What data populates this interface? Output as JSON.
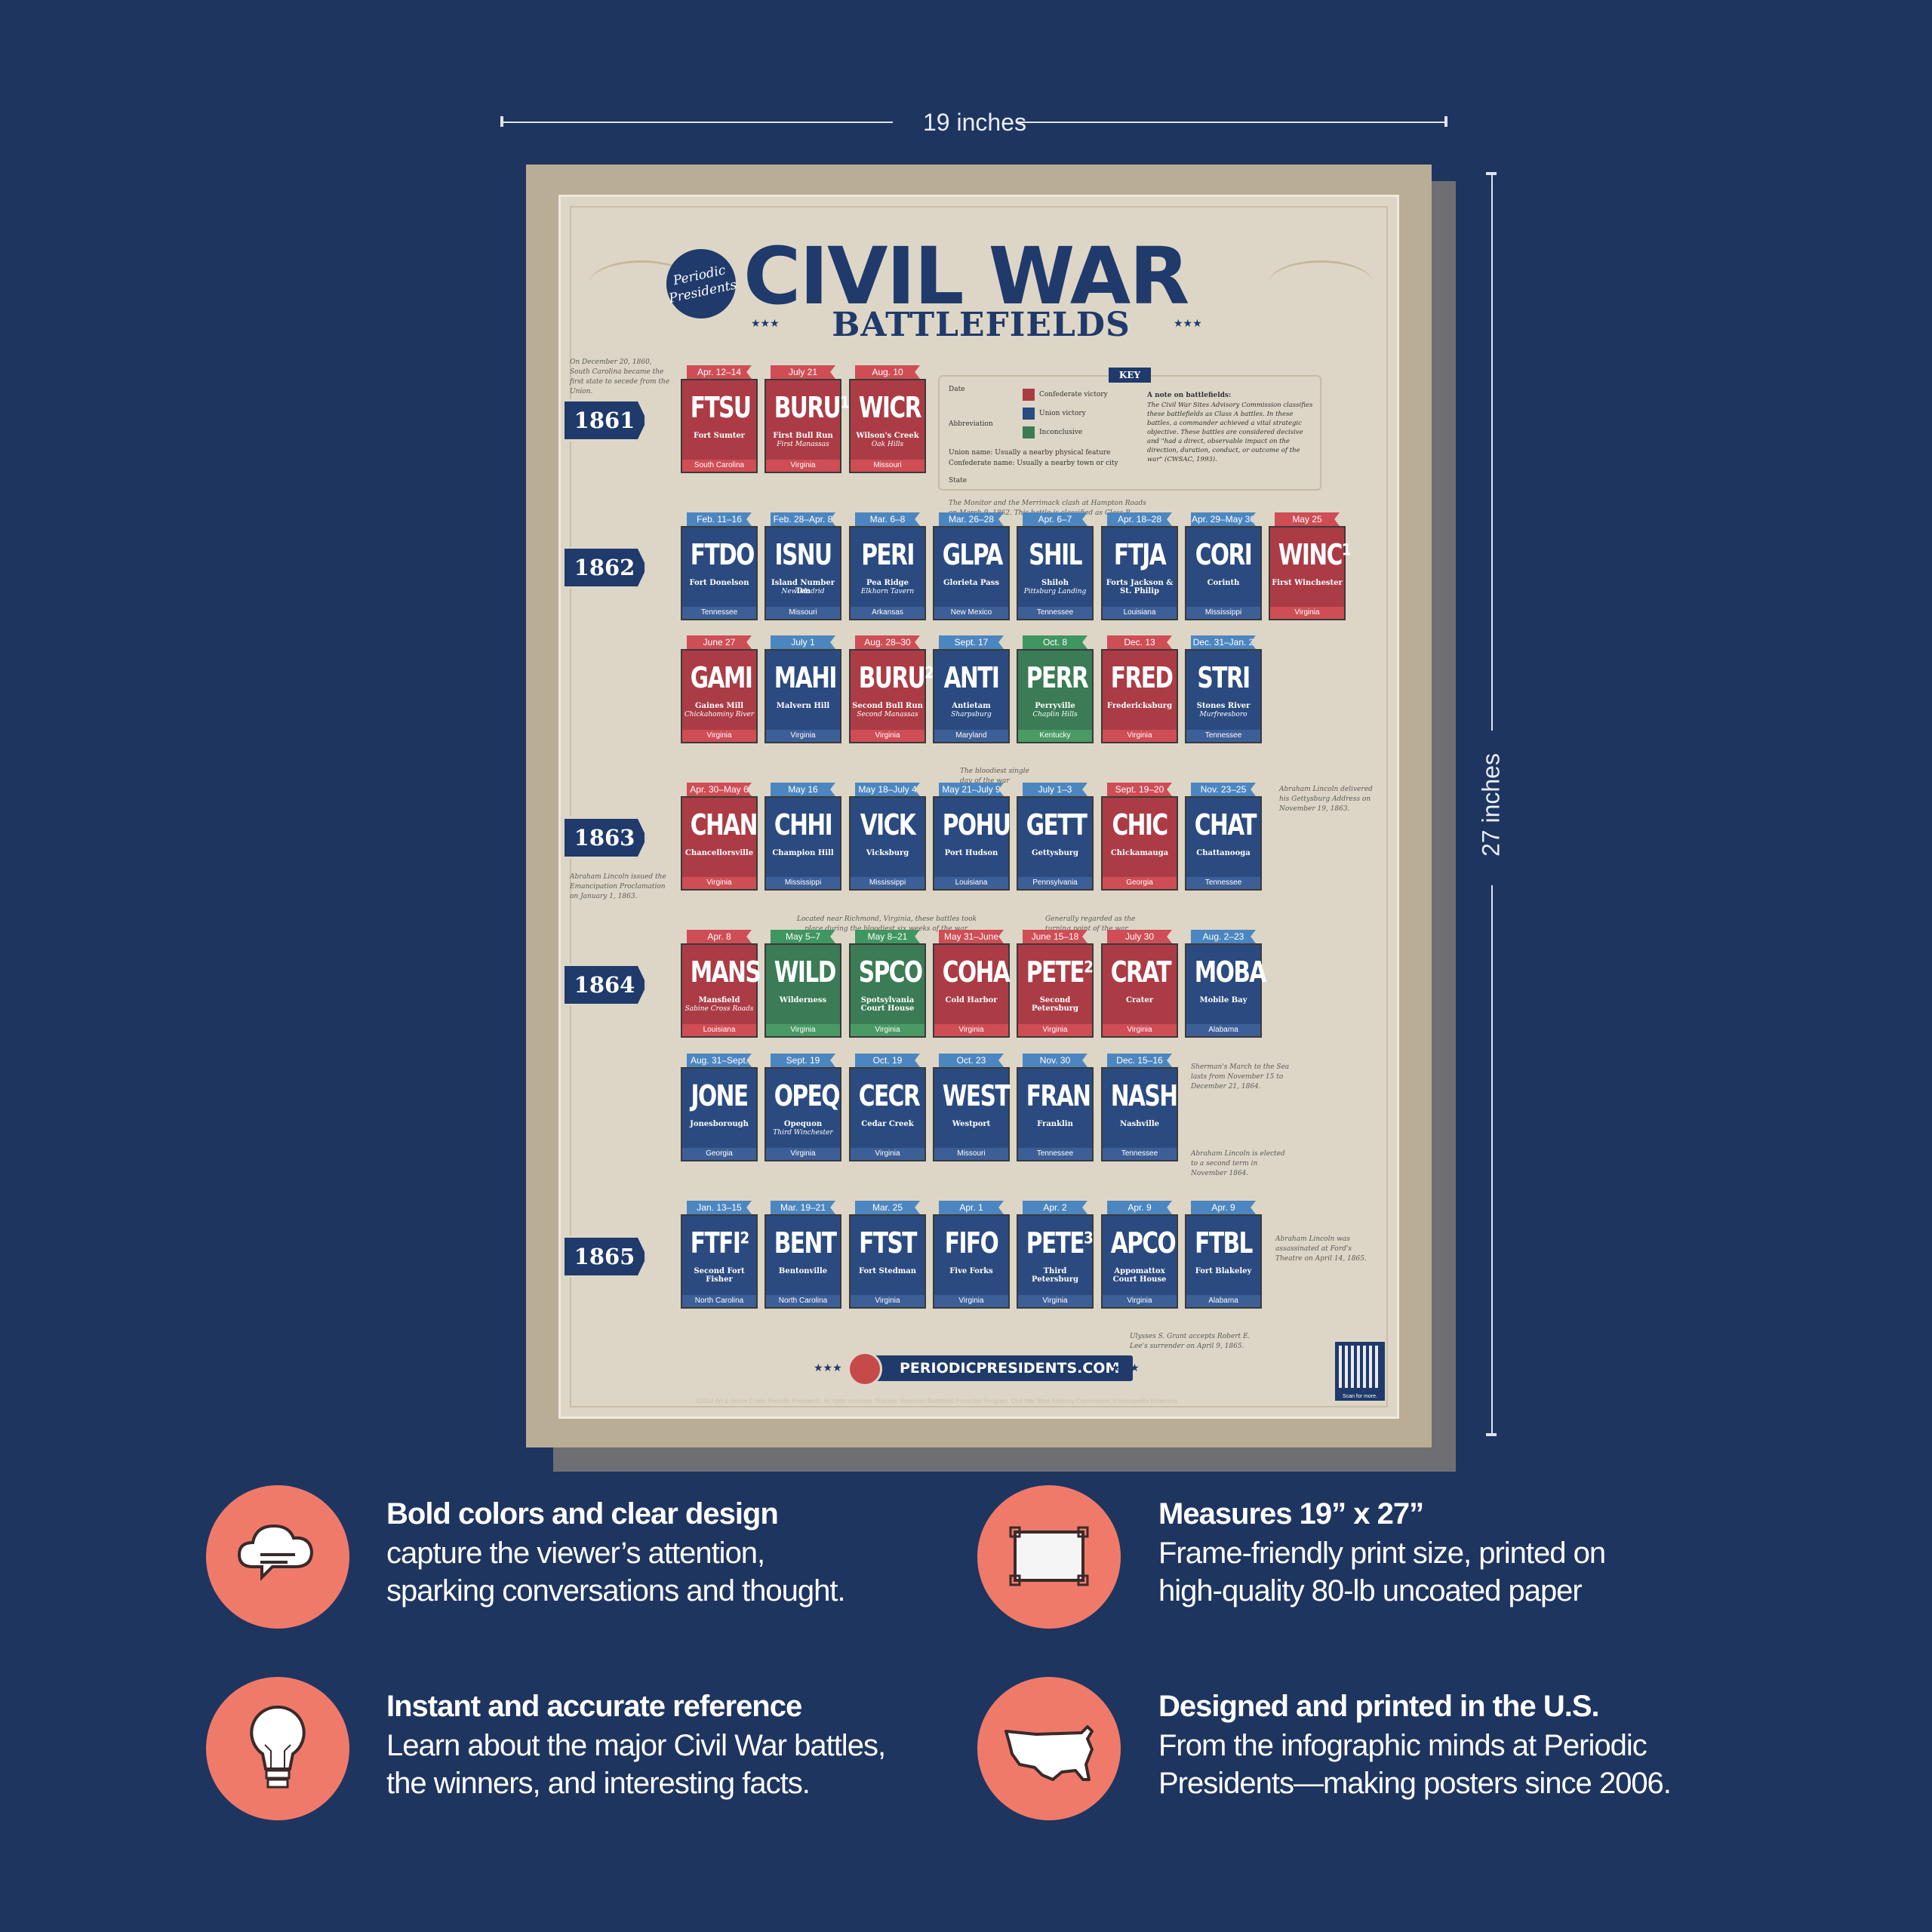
{
  "dimensions": {
    "width_label": "19 inches",
    "height_label": "27 inches"
  },
  "poster": {
    "logo_text": "Periodic Presidents",
    "title": "CIVIL WAR",
    "subtitle": "BATTLEFIELDS",
    "url": "PERIODICPRESIDENTS.COM",
    "qr_label": "Scan for more.",
    "copyright": "©2024 Art & Jessie Creek. Periodic Presidents. All rights reserved. Sources: American Battlefield Protection Program, Civil War Sites Advisory Commission, Encyclopedia Britannica",
    "key": {
      "title": "KEY",
      "date": "Date",
      "abbreviation": "Abbreviation",
      "union_name": "Union name: Usually a nearby physical feature",
      "confederate_name": "Confederate name: Usually a nearby town or city",
      "state": "State",
      "confederate_victory": "Confederate victory",
      "union_victory": "Union victory",
      "inconclusive": "Inconclusive",
      "note_title": "A note on battlefields:",
      "note_body": "The Civil War Sites Advisory Commission classifies these battlefields as Class A battles. In these battles, a commander achieved a vital strategic objective. These battles are considered decisive and \"had a direct, observable impact on the direction, duration, conduct, or outcome of the war\" (CWSAC, 1993).",
      "colors": {
        "C": "#ab3c45",
        "U": "#2b4b80",
        "I": "#3b7b55"
      }
    },
    "notes": {
      "n1860": "On December 20, 1860, South Carolina became the first state to secede from the Union.",
      "monitor": "The Monitor and the Merrimack clash at Hampton Roads on March 9, 1862. This battle is classified as Class B.",
      "antietam": "The bloodiest single day of the war",
      "gettysburg_address": "Abraham Lincoln delivered his Gettysburg Address on November 19, 1863.",
      "emancipation": "Abraham Lincoln issued the Emancipation Proclamation on January 1, 1863.",
      "richmond": "Located near Richmond, Virginia, these battles took place during the bloodiest six weeks of the war.",
      "turning": "Generally regarded as the turning point of the war",
      "sherman": "Sherman's March to the Sea lasts from November 15 to December 21, 1864.",
      "reelect": "Abraham Lincoln is elected to a second term in November 1864.",
      "assassinated": "Abraham Lincoln was assassinated at Ford's Theatre on April 14, 1865.",
      "surrender": "Ulysses S. Grant accepts Robert E. Lee's surrender on April 9, 1865."
    },
    "rows": [
      {
        "year": "1861",
        "cards": [
          {
            "r": "C",
            "date": "Apr. 12–14",
            "abbr": "FTSU",
            "name": "Fort Sumter",
            "alt": "",
            "state": "South Carolina"
          },
          {
            "r": "C",
            "date": "July 21",
            "abbr": "BURU¹",
            "name": "First Bull Run",
            "alt": "First Manassas",
            "state": "Virginia"
          },
          {
            "r": "C",
            "date": "Aug. 10",
            "abbr": "WICR",
            "name": "Wilson's Creek",
            "alt": "Oak Hills",
            "state": "Missouri"
          }
        ]
      },
      {
        "year": "1862",
        "cards": [
          {
            "r": "U",
            "date": "Feb. 11–16",
            "abbr": "FTDO",
            "name": "Fort Donelson",
            "alt": "",
            "state": "Tennessee"
          },
          {
            "r": "U",
            "date": "Feb. 28–Apr. 8",
            "abbr": "ISNU",
            "name": "Island Number Ten",
            "alt": "New Madrid",
            "state": "Missouri"
          },
          {
            "r": "U",
            "date": "Mar. 6–8",
            "abbr": "PERI",
            "name": "Pea Ridge",
            "alt": "Elkhorn Tavern",
            "state": "Arkansas"
          },
          {
            "r": "U",
            "date": "Mar. 26–28",
            "abbr": "GLPA",
            "name": "Glorieta Pass",
            "alt": "",
            "state": "New Mexico"
          },
          {
            "r": "U",
            "date": "Apr. 6–7",
            "abbr": "SHIL",
            "name": "Shiloh",
            "alt": "Pittsburg Landing",
            "state": "Tennessee"
          },
          {
            "r": "U",
            "date": "Apr. 18–28",
            "abbr": "FTJA",
            "name": "Forts Jackson & St. Philip",
            "alt": "",
            "state": "Louisiana"
          },
          {
            "r": "U",
            "date": "Apr. 29–May 30",
            "abbr": "CORI",
            "name": "Corinth",
            "alt": "",
            "state": "Mississippi"
          },
          {
            "r": "C",
            "date": "May 25",
            "abbr": "WINC¹",
            "name": "First Winchester",
            "alt": "",
            "state": "Virginia"
          }
        ]
      },
      {
        "year": "",
        "cards": [
          {
            "r": "C",
            "date": "June 27",
            "abbr": "GAMI",
            "name": "Gaines Mill",
            "alt": "Chickahominy River",
            "state": "Virginia"
          },
          {
            "r": "U",
            "date": "July 1",
            "abbr": "MAHI",
            "name": "Malvern Hill",
            "alt": "",
            "state": "Virginia"
          },
          {
            "r": "C",
            "date": "Aug. 28–30",
            "abbr": "BURU²",
            "name": "Second Bull Run",
            "alt": "Second Manassas",
            "state": "Virginia"
          },
          {
            "r": "U",
            "date": "Sept. 17",
            "abbr": "ANTI",
            "name": "Antietam",
            "alt": "Sharpsburg",
            "state": "Maryland"
          },
          {
            "r": "I",
            "date": "Oct. 8",
            "abbr": "PERR",
            "name": "Perryville",
            "alt": "Chaplin Hills",
            "state": "Kentucky"
          },
          {
            "r": "C",
            "date": "Dec. 13",
            "abbr": "FRED",
            "name": "Fredericksburg",
            "alt": "",
            "state": "Virginia"
          },
          {
            "r": "U",
            "date": "Dec. 31–Jan. 2",
            "abbr": "STRI",
            "name": "Stones River",
            "alt": "Murfreesboro",
            "state": "Tennessee"
          }
        ]
      },
      {
        "year": "1863",
        "cards": [
          {
            "r": "C",
            "date": "Apr. 30–May 6",
            "abbr": "CHAN",
            "name": "Chancellorsville",
            "alt": "",
            "state": "Virginia"
          },
          {
            "r": "U",
            "date": "May 16",
            "abbr": "CHHI",
            "name": "Champion Hill",
            "alt": "",
            "state": "Mississippi"
          },
          {
            "r": "U",
            "date": "May 18–July 4",
            "abbr": "VICK",
            "name": "Vicksburg",
            "alt": "",
            "state": "Mississippi"
          },
          {
            "r": "U",
            "date": "May 21–July 9",
            "abbr": "POHU",
            "name": "Port Hudson",
            "alt": "",
            "state": "Louisiana"
          },
          {
            "r": "U",
            "date": "July 1–3",
            "abbr": "GETT",
            "name": "Gettysburg",
            "alt": "",
            "state": "Pennsylvania"
          },
          {
            "r": "C",
            "date": "Sept. 19–20",
            "abbr": "CHIC",
            "name": "Chickamauga",
            "alt": "",
            "state": "Georgia"
          },
          {
            "r": "U",
            "date": "Nov. 23–25",
            "abbr": "CHAT",
            "name": "Chattanooga",
            "alt": "",
            "state": "Tennessee"
          }
        ]
      },
      {
        "year": "1864",
        "cards": [
          {
            "r": "C",
            "date": "Apr. 8",
            "abbr": "MANS",
            "name": "Mansfield",
            "alt": "Sabine Cross Roads",
            "state": "Louisiana"
          },
          {
            "r": "I",
            "date": "May 5–7",
            "abbr": "WILD",
            "name": "Wilderness",
            "alt": "",
            "state": "Virginia"
          },
          {
            "r": "I",
            "date": "May 8–21",
            "abbr": "SPCO",
            "name": "Spotsylvania Court House",
            "alt": "",
            "state": "Virginia"
          },
          {
            "r": "C",
            "date": "May 31–June 12",
            "abbr": "COHA",
            "name": "Cold Harbor",
            "alt": "",
            "state": "Virginia"
          },
          {
            "r": "C",
            "date": "June 15–18",
            "abbr": "PETE²",
            "name": "Second Petersburg",
            "alt": "",
            "state": "Virginia"
          },
          {
            "r": "C",
            "date": "July 30",
            "abbr": "CRAT",
            "name": "Crater",
            "alt": "",
            "state": "Virginia"
          },
          {
            "r": "U",
            "date": "Aug. 2–23",
            "abbr": "MOBA",
            "name": "Mobile Bay",
            "alt": "",
            "state": "Alabama"
          }
        ]
      },
      {
        "year": "",
        "cards": [
          {
            "r": "U",
            "date": "Aug. 31–Sept. 1",
            "abbr": "JONE",
            "name": "Jonesborough",
            "alt": "",
            "state": "Georgia"
          },
          {
            "r": "U",
            "date": "Sept. 19",
            "abbr": "OPEQ",
            "name": "Opequon",
            "alt": "Third Winchester",
            "state": "Virginia"
          },
          {
            "r": "U",
            "date": "Oct. 19",
            "abbr": "CECR",
            "name": "Cedar Creek",
            "alt": "",
            "state": "Virginia"
          },
          {
            "r": "U",
            "date": "Oct. 23",
            "abbr": "WEST",
            "name": "Westport",
            "alt": "",
            "state": "Missouri"
          },
          {
            "r": "U",
            "date": "Nov. 30",
            "abbr": "FRAN",
            "name": "Franklin",
            "alt": "",
            "state": "Tennessee"
          },
          {
            "r": "U",
            "date": "Dec. 15–16",
            "abbr": "NASH",
            "name": "Nashville",
            "alt": "",
            "state": "Tennessee"
          }
        ]
      },
      {
        "year": "1865",
        "cards": [
          {
            "r": "U",
            "date": "Jan. 13–15",
            "abbr": "FTFI²",
            "name": "Second Fort Fisher",
            "alt": "",
            "state": "North Carolina"
          },
          {
            "r": "U",
            "date": "Mar. 19–21",
            "abbr": "BENT",
            "name": "Bentonville",
            "alt": "",
            "state": "North Carolina"
          },
          {
            "r": "U",
            "date": "Mar. 25",
            "abbr": "FTST",
            "name": "Fort Stedman",
            "alt": "",
            "state": "Virginia"
          },
          {
            "r": "U",
            "date": "Apr. 1",
            "abbr": "FIFO",
            "name": "Five Forks",
            "alt": "",
            "state": "Virginia"
          },
          {
            "r": "U",
            "date": "Apr. 2",
            "abbr": "PETE³",
            "name": "Third Petersburg",
            "alt": "",
            "state": "Virginia"
          },
          {
            "r": "U",
            "date": "Apr. 9",
            "abbr": "APCO",
            "name": "Appomattox Court House",
            "alt": "",
            "state": "Virginia"
          },
          {
            "r": "U",
            "date": "Apr. 9",
            "abbr": "FTBL",
            "name": "Fort Blakeley",
            "alt": "",
            "state": "Alabama"
          }
        ]
      }
    ]
  },
  "features": [
    {
      "icon": "speech-cloud-icon",
      "title": "Bold colors and clear design",
      "line1": "capture the viewer’s attention,",
      "line2": "sparking conversations and thought."
    },
    {
      "icon": "frame-icon",
      "title": "Measures 19” x 27”",
      "line1": "Frame-friendly print size, printed on",
      "line2": "high-quality 80-lb uncoated paper"
    },
    {
      "icon": "lightbulb-icon",
      "title": "Instant and accurate reference",
      "line1": "Learn about the major Civil War battles,",
      "line2": "the winners, and interesting facts."
    },
    {
      "icon": "usa-map-icon",
      "title": "Designed and printed in the U.S.",
      "line1": "From the infographic minds at Periodic",
      "line2": "Presidents—making posters since 2006."
    }
  ]
}
